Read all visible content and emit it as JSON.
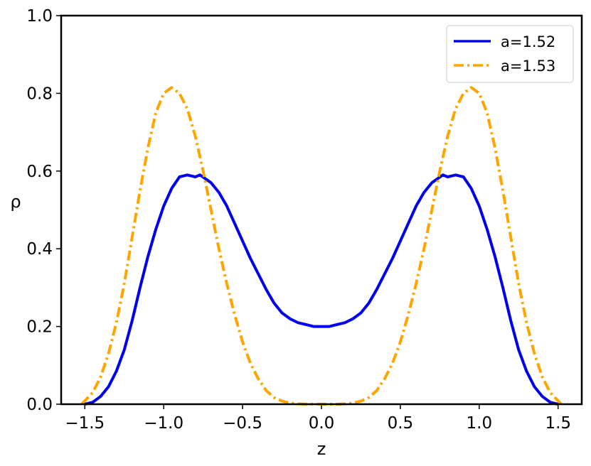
{
  "chart_data": {
    "type": "line",
    "title": "",
    "xlabel": "z",
    "ylabel": "ρ",
    "xlim": [
      -1.65,
      1.65
    ],
    "ylim": [
      0.0,
      1.0
    ],
    "grid": false,
    "legend_position": "top-right",
    "x_ticks": [
      -1.5,
      -1.0,
      -0.5,
      0.0,
      0.5,
      1.0,
      1.5
    ],
    "x_tick_labels": [
      "−1.5",
      "−1.0",
      "−0.5",
      "0.0",
      "0.5",
      "1.0",
      "1.5"
    ],
    "y_ticks": [
      0.0,
      0.2,
      0.4,
      0.6,
      0.8,
      1.0
    ],
    "y_tick_labels": [
      "0.0",
      "0.2",
      "0.4",
      "0.6",
      "0.8",
      "1.0"
    ],
    "series": [
      {
        "name": "a=1.52",
        "color": "#0000ee",
        "style": "solid",
        "x": [
          -1.5,
          -1.45,
          -1.4,
          -1.35,
          -1.3,
          -1.25,
          -1.2,
          -1.15,
          -1.1,
          -1.05,
          -1.0,
          -0.95,
          -0.9,
          -0.85,
          -0.8,
          -0.77,
          -0.7,
          -0.65,
          -0.6,
          -0.55,
          -0.5,
          -0.45,
          -0.4,
          -0.35,
          -0.3,
          -0.25,
          -0.2,
          -0.15,
          -0.1,
          -0.05,
          0.0,
          0.05,
          0.1,
          0.15,
          0.2,
          0.25,
          0.3,
          0.35,
          0.4,
          0.45,
          0.5,
          0.55,
          0.6,
          0.65,
          0.7,
          0.77,
          0.8,
          0.85,
          0.9,
          0.95,
          1.0,
          1.05,
          1.1,
          1.15,
          1.2,
          1.25,
          1.3,
          1.35,
          1.4,
          1.45,
          1.5
        ],
        "y": [
          0.0,
          0.005,
          0.02,
          0.045,
          0.085,
          0.14,
          0.215,
          0.3,
          0.38,
          0.45,
          0.51,
          0.555,
          0.585,
          0.59,
          0.585,
          0.59,
          0.57,
          0.545,
          0.51,
          0.465,
          0.42,
          0.375,
          0.335,
          0.295,
          0.26,
          0.235,
          0.22,
          0.21,
          0.205,
          0.2,
          0.2,
          0.2,
          0.205,
          0.21,
          0.22,
          0.235,
          0.26,
          0.295,
          0.335,
          0.375,
          0.42,
          0.465,
          0.51,
          0.545,
          0.57,
          0.59,
          0.585,
          0.59,
          0.585,
          0.555,
          0.51,
          0.45,
          0.38,
          0.3,
          0.215,
          0.14,
          0.085,
          0.045,
          0.02,
          0.005,
          0.0
        ]
      },
      {
        "name": "a=1.53",
        "color": "#ffa500",
        "style": "dashdot",
        "x": [
          -1.52,
          -1.45,
          -1.4,
          -1.35,
          -1.3,
          -1.25,
          -1.2,
          -1.15,
          -1.1,
          -1.05,
          -1.0,
          -0.95,
          -0.9,
          -0.85,
          -0.8,
          -0.75,
          -0.7,
          -0.65,
          -0.6,
          -0.55,
          -0.5,
          -0.45,
          -0.4,
          -0.35,
          -0.3,
          -0.25,
          -0.2,
          -0.15,
          -0.1,
          -0.05,
          0.0,
          0.05,
          0.1,
          0.15,
          0.2,
          0.25,
          0.3,
          0.35,
          0.4,
          0.45,
          0.5,
          0.55,
          0.6,
          0.65,
          0.7,
          0.75,
          0.8,
          0.85,
          0.9,
          0.95,
          1.0,
          1.05,
          1.1,
          1.15,
          1.2,
          1.25,
          1.3,
          1.35,
          1.4,
          1.45,
          1.52
        ],
        "y": [
          0.0,
          0.03,
          0.07,
          0.13,
          0.21,
          0.31,
          0.43,
          0.55,
          0.66,
          0.75,
          0.8,
          0.815,
          0.8,
          0.76,
          0.69,
          0.6,
          0.5,
          0.4,
          0.31,
          0.23,
          0.16,
          0.105,
          0.065,
          0.035,
          0.017,
          0.008,
          0.003,
          0.001,
          0.0,
          0.0,
          0.0,
          0.0,
          0.0,
          0.001,
          0.003,
          0.008,
          0.017,
          0.035,
          0.065,
          0.105,
          0.16,
          0.23,
          0.31,
          0.4,
          0.5,
          0.6,
          0.69,
          0.76,
          0.8,
          0.815,
          0.8,
          0.75,
          0.66,
          0.55,
          0.43,
          0.31,
          0.21,
          0.13,
          0.07,
          0.03,
          0.0
        ]
      }
    ]
  }
}
